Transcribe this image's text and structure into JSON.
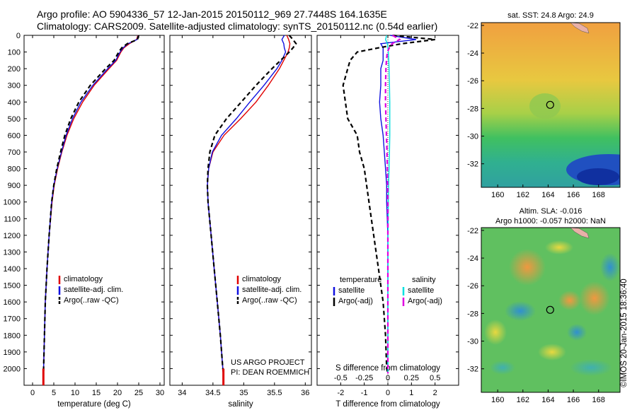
{
  "header": {
    "line1": "Argo profile: AO 5904336_57 12-Jan-2015 20150112_969 27.7448S 164.1635E",
    "line2": "Climatology: CARS2009. Satellite-adjusted climatology: synTS_20150112.nc (0.54d earlier)"
  },
  "colors": {
    "climatology": "#e00000",
    "satellite": "#1010e0",
    "argo": "#000000",
    "cyan": "#00e0e0",
    "magenta": "#e000e0"
  },
  "chart_data": [
    {
      "type": "line",
      "panel": "temperature",
      "xlabel": "temperature (deg C)",
      "ylabel": "",
      "xlim": [
        -2,
        31
      ],
      "ylim": [
        2100,
        0
      ],
      "xticks": [
        0,
        5,
        10,
        15,
        20,
        25,
        30
      ],
      "yticks": [
        0,
        100,
        200,
        300,
        400,
        500,
        600,
        700,
        800,
        900,
        1000,
        1100,
        1200,
        1300,
        1400,
        1500,
        1600,
        1700,
        1800,
        1900,
        2000
      ],
      "depth": [
        0,
        25,
        50,
        75,
        100,
        150,
        200,
        300,
        400,
        500,
        600,
        700,
        800,
        900,
        1000,
        1200,
        1400,
        1600,
        1800,
        2000,
        2030
      ],
      "legend": [
        "climatology",
        "satellite-adj. clim.",
        "Argo(..raw -QC)"
      ],
      "series": [
        {
          "name": "climatology",
          "style": "solid",
          "color": "#e00000",
          "values": [
            24.8,
            24.5,
            22.8,
            21.5,
            20.8,
            19.8,
            18.0,
            14.5,
            11.8,
            9.7,
            8.1,
            6.9,
            5.9,
            5.1,
            4.6,
            3.9,
            3.4,
            3.0,
            2.8,
            2.6,
            2.55
          ]
        },
        {
          "name": "satellite-adj. clim.",
          "style": "solid",
          "color": "#1010e0",
          "values": [
            24.9,
            24.6,
            22.5,
            21.3,
            20.6,
            19.6,
            17.7,
            14.2,
            11.4,
            9.4,
            7.9,
            6.8,
            5.8,
            5.0,
            4.5,
            3.9,
            3.4,
            3.0,
            2.8,
            2.6,
            2.55
          ]
        },
        {
          "name": "Argo(..raw -QC)",
          "style": "dashed",
          "color": "#000000",
          "values": [
            25.0,
            24.7,
            22.3,
            21.0,
            20.3,
            19.2,
            17.2,
            13.6,
            10.9,
            9.0,
            7.6,
            6.6,
            5.7,
            5.0,
            4.5,
            3.9,
            3.4,
            3.0,
            2.8,
            2.6,
            2.6
          ]
        }
      ]
    },
    {
      "type": "line",
      "panel": "salinity",
      "xlabel": "salinity",
      "xlim": [
        33.8,
        36.1
      ],
      "ylim": [
        2100,
        0
      ],
      "xticks": [
        34,
        34.5,
        35,
        35.5,
        36
      ],
      "depth": [
        0,
        25,
        50,
        75,
        100,
        150,
        200,
        300,
        400,
        500,
        600,
        700,
        800,
        900,
        1000,
        1200,
        1400,
        1600,
        1800,
        2000,
        2030
      ],
      "legend": [
        "climatology",
        "satellite-adj. clim.",
        "Argo(..raw -QC)"
      ],
      "annotation": [
        "US ARGO PROJECT",
        "PI: DEAN ROEMMICH"
      ],
      "series": [
        {
          "name": "climatology",
          "style": "solid",
          "color": "#e00000",
          "values": [
            35.7,
            35.73,
            35.75,
            35.74,
            35.72,
            35.65,
            35.58,
            35.4,
            35.2,
            34.95,
            34.68,
            34.5,
            34.43,
            34.41,
            34.42,
            34.47,
            34.52,
            34.57,
            34.62,
            34.66,
            34.67
          ]
        },
        {
          "name": "satellite-adj. clim.",
          "style": "solid",
          "color": "#1010e0",
          "values": [
            35.66,
            35.62,
            35.65,
            35.66,
            35.68,
            35.62,
            35.54,
            35.33,
            35.1,
            34.88,
            34.64,
            34.49,
            34.43,
            34.41,
            34.42,
            34.47,
            34.52,
            34.57,
            34.62,
            34.66,
            34.67
          ]
        },
        {
          "name": "Argo(..raw -QC)",
          "style": "dashed",
          "color": "#000000",
          "values": [
            35.74,
            35.8,
            35.85,
            35.8,
            35.74,
            35.6,
            35.46,
            35.2,
            34.96,
            34.72,
            34.53,
            34.45,
            34.42,
            34.41,
            34.42,
            34.47,
            34.52,
            34.57,
            34.62,
            34.66,
            34.67
          ]
        }
      ]
    },
    {
      "type": "line",
      "panel": "difference",
      "xlabel": "T difference from climatology",
      "xlabel_top": "S difference from climatology",
      "xlim": [
        -3,
        3
      ],
      "ylim": [
        2100,
        0
      ],
      "xticks": [
        -2,
        -1,
        0,
        1,
        2
      ],
      "xticks_top": [
        "-0.5",
        "-0.25",
        "0",
        "0.25",
        "0.5"
      ],
      "depth": [
        0,
        25,
        50,
        75,
        100,
        150,
        200,
        300,
        400,
        500,
        600,
        700,
        800,
        900,
        1000,
        1200,
        1400,
        1600,
        1800,
        2000,
        2030
      ],
      "legend_temperature": [
        "temperature",
        "satellite",
        "Argo(-adj)"
      ],
      "legend_salinity": [
        "salinity",
        "satellite",
        "Argo(-adj)"
      ],
      "series": [
        {
          "name": "temperature satellite",
          "style": "solid",
          "color": "#1010e0",
          "values": [
            0.1,
            1.2,
            -0.3,
            -0.2,
            -0.2,
            -0.2,
            -0.3,
            -0.3,
            -0.35,
            -0.3,
            -0.2,
            -0.15,
            -0.1,
            -0.05,
            -0.05,
            0,
            0,
            0,
            0,
            0,
            0
          ]
        },
        {
          "name": "temperature Argo(-adj)",
          "style": "dashed",
          "color": "#000000",
          "values": [
            0.2,
            2.0,
            0.6,
            -0.4,
            -1.3,
            -1.6,
            -1.7,
            -1.9,
            -1.8,
            -1.7,
            -1.3,
            -1.2,
            -1.0,
            -0.9,
            -0.8,
            -0.6,
            -0.4,
            -0.2,
            -0.1,
            -0.05,
            0
          ]
        },
        {
          "name": "salinity satellite",
          "style": "solid",
          "color": "#00e0e0",
          "values": [
            -0.05,
            -0.1,
            -0.02,
            0.0,
            0.02,
            0.04,
            0.05,
            0.07,
            0.08,
            0.08,
            0.08,
            0.07,
            0.05,
            0.03,
            0.02,
            0.01,
            0.01,
            0,
            0,
            0,
            0
          ]
        },
        {
          "name": "salinity Argo(-adj)",
          "style": "dashed",
          "color": "#e000e0",
          "values": [
            0.2,
            0.5,
            0.18,
            0.06,
            -0.02,
            -0.06,
            -0.08,
            -0.1,
            -0.1,
            -0.08,
            -0.06,
            -0.04,
            -0.02,
            -0.01,
            0,
            0,
            0,
            0,
            0,
            0,
            0
          ]
        }
      ]
    },
    {
      "type": "heatmap",
      "panel": "sst_map",
      "title": "sat. SST: 24.8 Argo: 24.9",
      "xticks": [
        160,
        162,
        164,
        166,
        168
      ],
      "yticks": [
        -22,
        -24,
        -26,
        -28,
        -30,
        -32
      ],
      "xlim": [
        158.7,
        169.7
      ],
      "ylim": [
        -33.7,
        -21.8
      ],
      "marker": {
        "lon": 164.16,
        "lat": -27.74
      }
    },
    {
      "type": "heatmap",
      "panel": "sla_map",
      "title": [
        "Altim. SLA: -0.016",
        "Argo h1000: -0.057 h2000: NaN"
      ],
      "xticks": [
        160,
        162,
        164,
        166,
        168
      ],
      "yticks": [
        -22,
        -24,
        -26,
        -28,
        -30,
        -32
      ],
      "xlim": [
        158.7,
        169.7
      ],
      "ylim": [
        -33.7,
        -21.8
      ],
      "marker": {
        "lon": 164.16,
        "lat": -27.74
      }
    }
  ],
  "footer": {
    "watermark": "©IMOS 20-Jan-2015 18:36:40"
  }
}
